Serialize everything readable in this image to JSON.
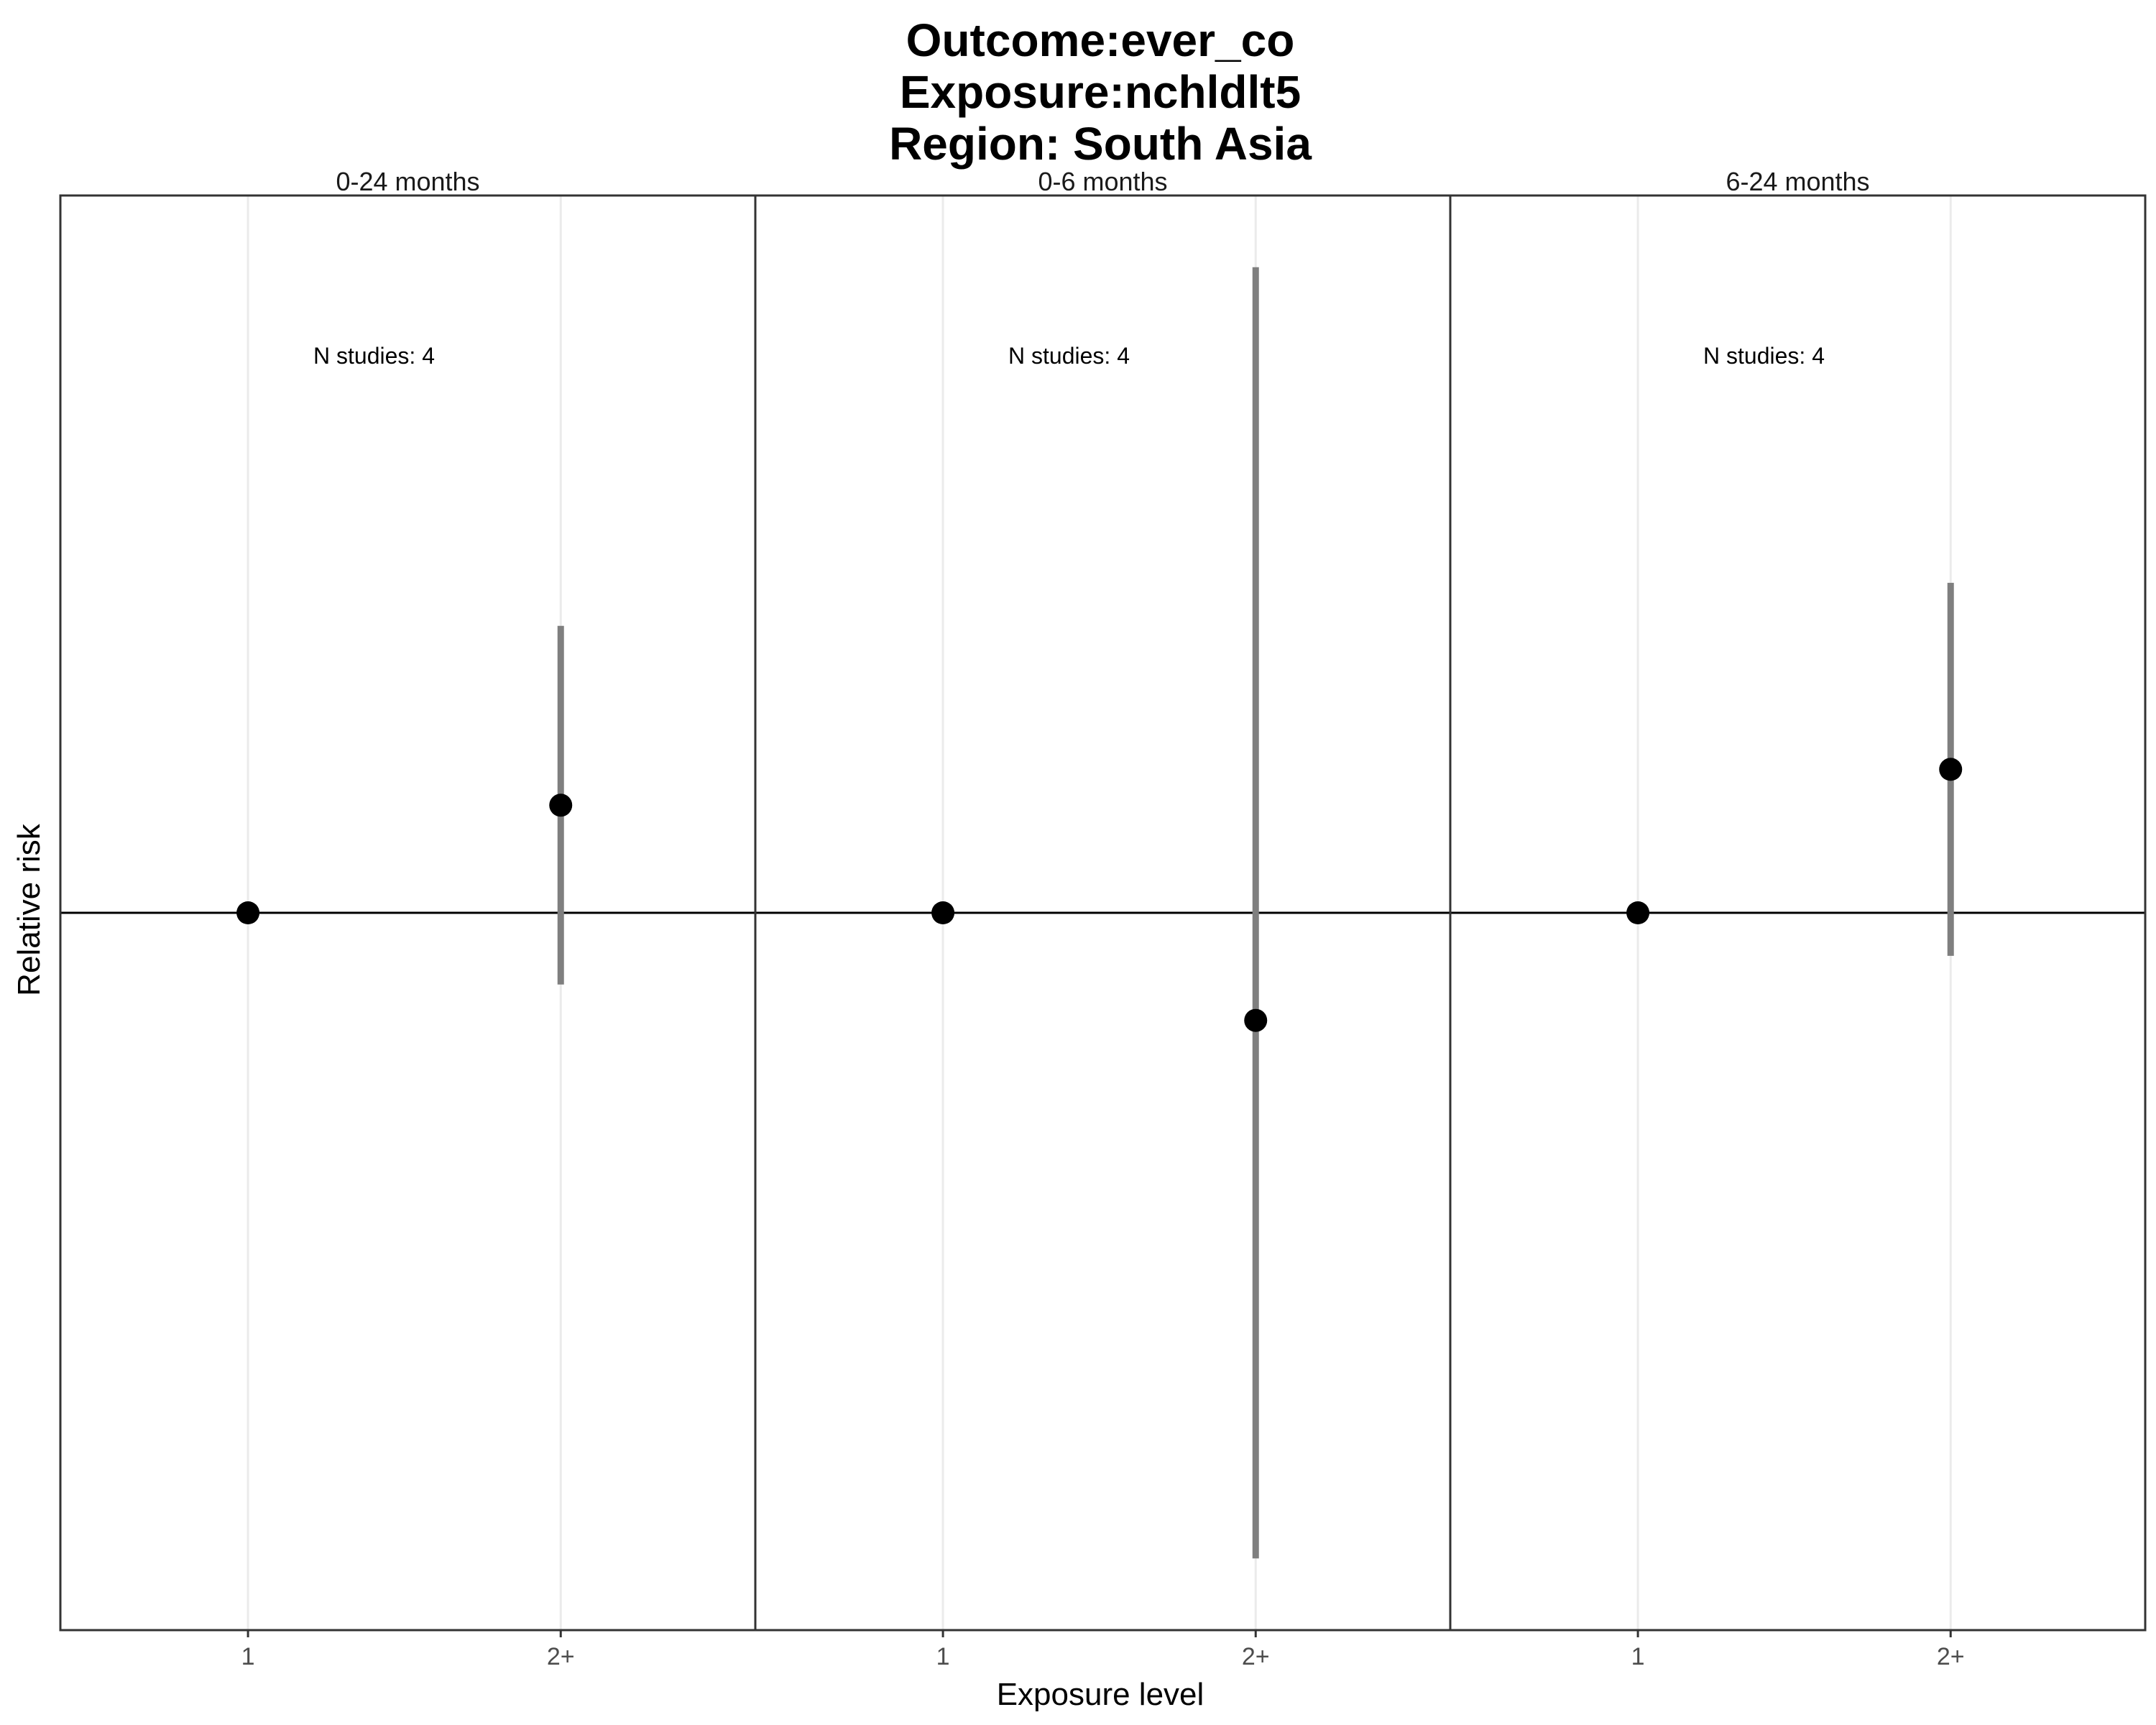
{
  "chart_data": {
    "type": "scatter",
    "title_lines": [
      "Outcome:ever_co",
      "Exposure:nchldlt5",
      "Region: South Asia"
    ],
    "xlabel": "Exposure level",
    "ylabel": "Relative risk",
    "categories": [
      "1",
      "2+"
    ],
    "facets": [
      {
        "label": "0-24 months",
        "annotation": "N studies: 4",
        "points": [
          {
            "x": "1",
            "y": 1.0
          },
          {
            "x": "2+",
            "y": 1.15,
            "lower": 0.9,
            "upper": 1.4
          }
        ]
      },
      {
        "label": "0-6 months",
        "annotation": "N studies: 4",
        "points": [
          {
            "x": "1",
            "y": 1.0
          },
          {
            "x": "2+",
            "y": 0.85,
            "lower": 0.1,
            "upper": 1.9
          }
        ]
      },
      {
        "label": "6-24 months",
        "annotation": "N studies: 4",
        "points": [
          {
            "x": "1",
            "y": 1.0
          },
          {
            "x": "2+",
            "y": 1.2,
            "lower": 0.94,
            "upper": 1.46
          }
        ]
      }
    ],
    "reference_line": 1.0,
    "ylim": [
      0.0,
      2.0
    ],
    "grid": true,
    "y_tick_labels_shown": false,
    "colors": {
      "point": "#000000",
      "ci": "#7f7f7f",
      "grid": "#ebebeb",
      "reference": "#000000",
      "panel_border": "#333333"
    }
  }
}
